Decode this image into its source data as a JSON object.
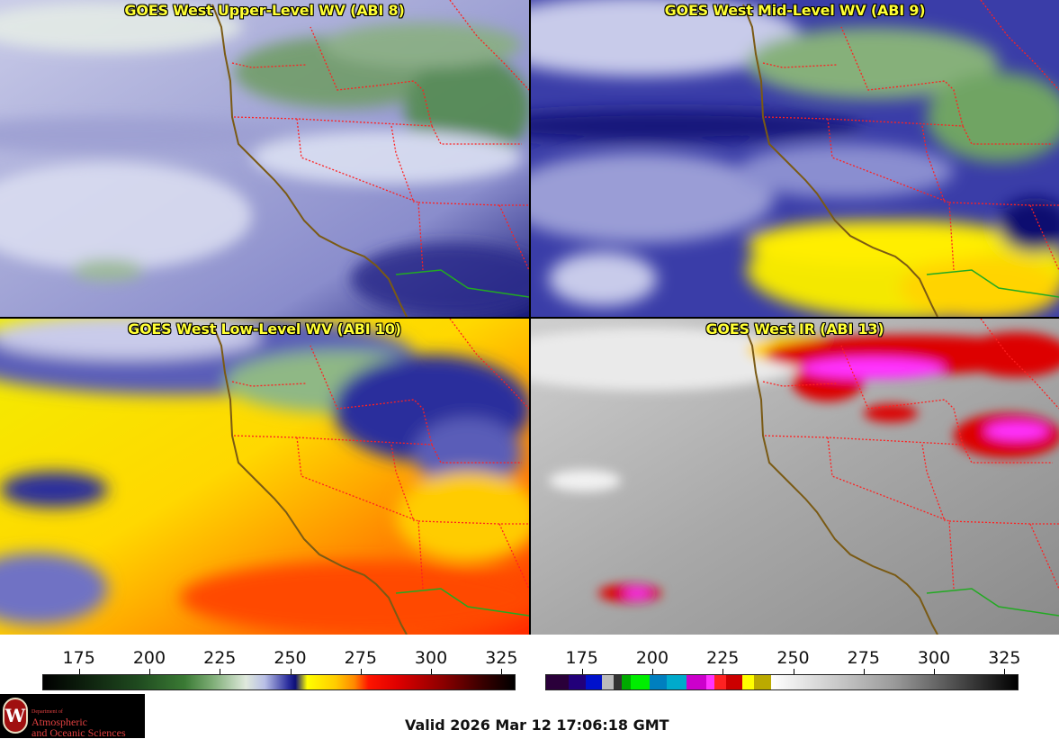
{
  "panels": [
    {
      "title": "GOES West Upper-Level WV (ABI 8)",
      "palette": "wv-upper"
    },
    {
      "title": "GOES West Mid-Level WV (ABI 9)",
      "palette": "wv-mid"
    },
    {
      "title": "GOES West Low-Level WV (ABI 10)",
      "palette": "wv-low"
    },
    {
      "title": "GOES West IR (ABI 13)",
      "palette": "ir"
    }
  ],
  "colorbar_wv": {
    "ticks": [
      "175",
      "200",
      "225",
      "250",
      "275",
      "300",
      "325"
    ],
    "range": [
      162,
      330
    ],
    "units": "K"
  },
  "colorbar_ir": {
    "ticks": [
      "175",
      "200",
      "225",
      "250",
      "275",
      "300",
      "325"
    ],
    "range": [
      162,
      330
    ],
    "units": "K",
    "segments": [
      {
        "from": 162,
        "to": 170,
        "color": "#2a003a"
      },
      {
        "from": 170,
        "to": 176,
        "color": "#22007a"
      },
      {
        "from": 176,
        "to": 182,
        "color": "#0011cc"
      },
      {
        "from": 182,
        "to": 186,
        "color": "#bbbbbb"
      },
      {
        "from": 186,
        "to": 189,
        "color": "#333333"
      },
      {
        "from": 189,
        "to": 192,
        "color": "#00aa00"
      },
      {
        "from": 192,
        "to": 199,
        "color": "#00ee00"
      },
      {
        "from": 199,
        "to": 205,
        "color": "#007fbf"
      },
      {
        "from": 205,
        "to": 212,
        "color": "#00aacc"
      },
      {
        "from": 212,
        "to": 219,
        "color": "#cc00cc"
      },
      {
        "from": 219,
        "to": 222,
        "color": "#ff33ff"
      },
      {
        "from": 222,
        "to": 226,
        "color": "#ff2222"
      },
      {
        "from": 226,
        "to": 232,
        "color": "#cc0000"
      },
      {
        "from": 232,
        "to": 236,
        "color": "#ffff00"
      },
      {
        "from": 236,
        "to": 242,
        "color": "#bbaa00"
      },
      {
        "from": 242,
        "to": 330,
        "color": "gradient"
      }
    ]
  },
  "colors": {
    "title_text": "#ffff33",
    "state_borders": "#ff2020",
    "coastline": "#7a5a14",
    "mexico_border": "#22aa22"
  },
  "logo": {
    "dept_line": "Department of",
    "line1": "Atmospheric",
    "line2": "and Oceanic Sciences",
    "seal_letter": "W"
  },
  "valid_time": "Valid 2026 Mar 12 17:06:18 GMT"
}
